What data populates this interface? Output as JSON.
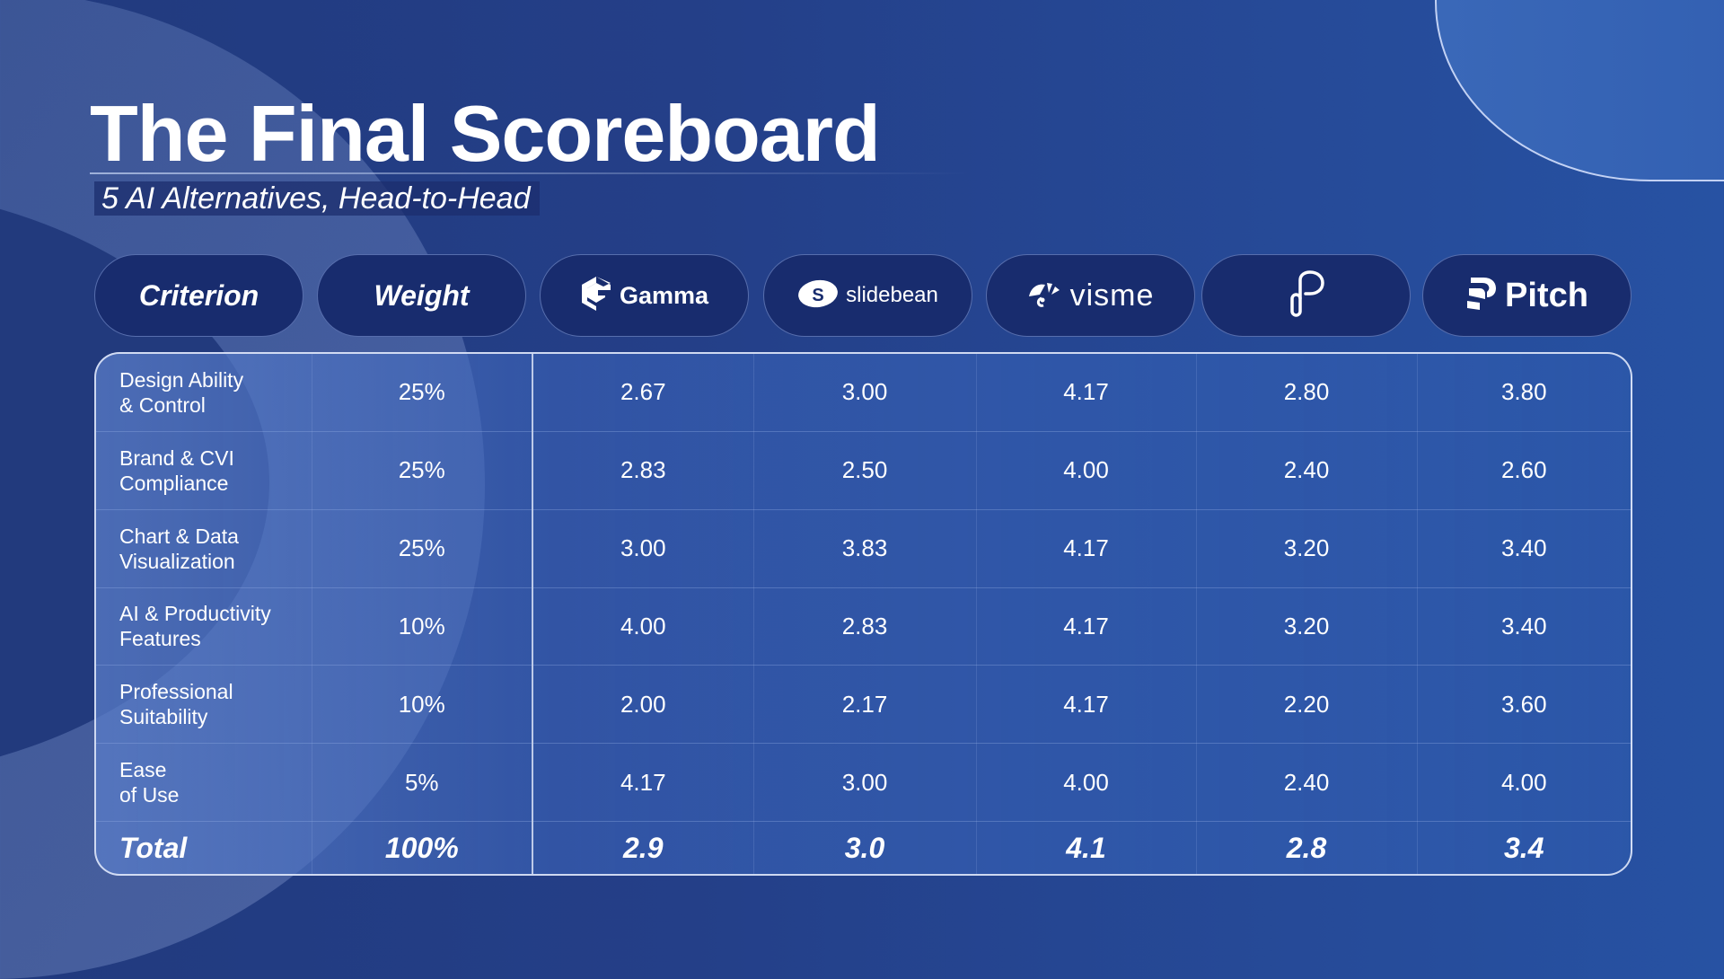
{
  "header": {
    "title": "The Final Scoreboard",
    "subtitle": "5  AI Alternatives, Head-to-Head"
  },
  "columns": [
    {
      "label": "Criterion",
      "type": "text"
    },
    {
      "label": "Weight",
      "type": "text"
    },
    {
      "label": "Gamma",
      "type": "brand",
      "icon": "gamma-logo-icon"
    },
    {
      "label": "slidebean",
      "type": "brand",
      "icon": "slidebean-logo-icon"
    },
    {
      "label": "visme",
      "type": "brand",
      "icon": "visme-logo-icon"
    },
    {
      "label": "",
      "type": "brand",
      "icon": "p-logo-icon"
    },
    {
      "label": "Pitch",
      "type": "brand",
      "icon": "pitch-logo-icon"
    }
  ],
  "rows": [
    {
      "criterion_l1": "Design Ability",
      "criterion_l2": "& Control",
      "weight": "25%",
      "scores": [
        "2.67",
        "3.00",
        "4.17",
        "2.80",
        "3.80"
      ]
    },
    {
      "criterion_l1": "Brand & CVI",
      "criterion_l2": "Compliance",
      "weight": "25%",
      "scores": [
        "2.83",
        "2.50",
        "4.00",
        "2.40",
        "2.60"
      ]
    },
    {
      "criterion_l1": "Chart & Data",
      "criterion_l2": "Visualization",
      "weight": "25%",
      "scores": [
        "3.00",
        "3.83",
        "4.17",
        "3.20",
        "3.40"
      ]
    },
    {
      "criterion_l1": "AI & Productivity",
      "criterion_l2": "Features",
      "weight": "10%",
      "scores": [
        "4.00",
        "2.83",
        "4.17",
        "3.20",
        "3.40"
      ]
    },
    {
      "criterion_l1": "Professional",
      "criterion_l2": "Suitability",
      "weight": "10%",
      "scores": [
        "2.00",
        "2.17",
        "4.17",
        "2.20",
        "3.60"
      ]
    },
    {
      "criterion_l1": "Ease",
      "criterion_l2": "of Use",
      "weight": "5%",
      "scores": [
        "4.17",
        "3.00",
        "4.00",
        "2.40",
        "4.00"
      ]
    }
  ],
  "total": {
    "label": "Total",
    "weight": "100%",
    "scores": [
      "2.9",
      "3.0",
      "4.1",
      "2.8",
      "3.4"
    ]
  },
  "colors": {
    "background": "#243f88",
    "pill": "#182c6e",
    "table": "#2d58aa"
  }
}
